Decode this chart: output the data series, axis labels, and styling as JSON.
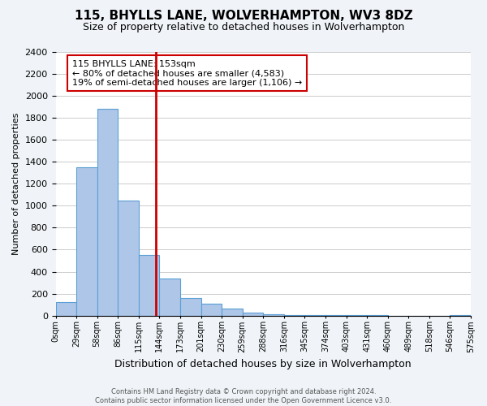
{
  "title": "115, BHYLLS LANE, WOLVERHAMPTON, WV3 8DZ",
  "subtitle": "Size of property relative to detached houses in Wolverhampton",
  "xlabel": "Distribution of detached houses by size in Wolverhampton",
  "ylabel": "Number of detached properties",
  "bin_labels": [
    "0sqm",
    "29sqm",
    "58sqm",
    "86sqm",
    "115sqm",
    "144sqm",
    "173sqm",
    "201sqm",
    "230sqm",
    "259sqm",
    "288sqm",
    "316sqm",
    "345sqm",
    "374sqm",
    "403sqm",
    "431sqm",
    "460sqm",
    "489sqm",
    "518sqm",
    "546sqm",
    "575sqm"
  ],
  "bar_heights": [
    125,
    1350,
    1880,
    1050,
    550,
    340,
    160,
    105,
    60,
    30,
    15,
    8,
    4,
    2,
    1,
    1,
    0,
    0,
    0,
    1
  ],
  "bar_color": "#aec6e8",
  "bar_edge_color": "#5a9fd4",
  "vline_x": 4.83,
  "vline_color": "#cc0000",
  "annotation_text": "115 BHYLLS LANE: 153sqm\n← 80% of detached houses are smaller (4,583)\n19% of semi-detached houses are larger (1,106) →",
  "annotation_box_color": "#ffffff",
  "annotation_box_edge": "#cc0000",
  "ylim": [
    0,
    2400
  ],
  "yticks": [
    0,
    200,
    400,
    600,
    800,
    1000,
    1200,
    1400,
    1600,
    1800,
    2000,
    2200,
    2400
  ],
  "footer_line1": "Contains HM Land Registry data © Crown copyright and database right 2024.",
  "footer_line2": "Contains public sector information licensed under the Open Government Licence v3.0.",
  "bg_color": "#f0f4f8",
  "plot_bg_color": "#ffffff",
  "grid_color": "#cccccc"
}
